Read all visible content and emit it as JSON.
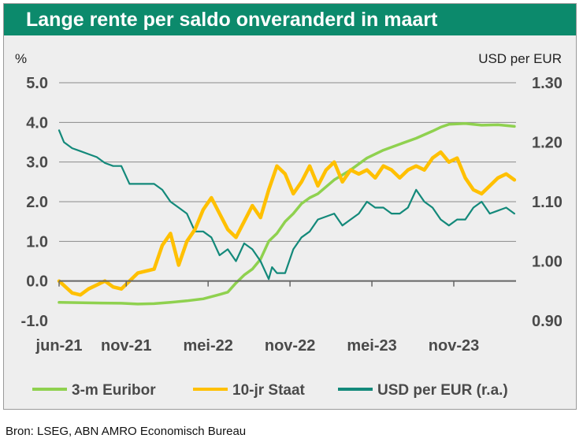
{
  "title": "Lange rente per saldo onveranderd in maart",
  "source": "Bron: LSEG, ABN AMRO Economisch Bureau",
  "colors": {
    "title_bg": "#0c8a6c",
    "euribor": "#8fd14f",
    "staat": "#ffc000",
    "usd": "#13897a",
    "zero_line": "#666666",
    "grid": "#8a8a8a"
  },
  "chart_data": {
    "type": "line",
    "title": "Lange rente per saldo onveranderd in maart",
    "ylabel_left": "%",
    "ylabel_right": "USD per EUR",
    "x_start": 2021.42,
    "x_end": 2024.21,
    "left_axis": {
      "min": -1.0,
      "max": 5.0,
      "ticks": [
        "-1.0",
        "0.0",
        "1.0",
        "2.0",
        "3.0",
        "4.0",
        "5.0"
      ]
    },
    "right_axis": {
      "min": 0.9,
      "max": 1.3,
      "ticks": [
        "0.90",
        "1.00",
        "1.10",
        "1.20",
        "1.30"
      ]
    },
    "x_ticks": [
      {
        "label": "jun-21",
        "x": 2021.42
      },
      {
        "label": "nov-21",
        "x": 2021.83
      },
      {
        "label": "mei-22",
        "x": 2022.33
      },
      {
        "label": "nov-22",
        "x": 2022.83
      },
      {
        "label": "mei-23",
        "x": 2023.33
      },
      {
        "label": "nov-23",
        "x": 2023.83
      }
    ],
    "grid": true,
    "legend_position": "bottom",
    "series": [
      {
        "name": "3-m Euribor",
        "axis": "left",
        "x": [
          2021.42,
          2021.6,
          2021.8,
          2021.9,
          2022.0,
          2022.1,
          2022.2,
          2022.3,
          2022.4,
          2022.45,
          2022.5,
          2022.55,
          2022.6,
          2022.65,
          2022.7,
          2022.75,
          2022.8,
          2022.85,
          2022.9,
          2022.95,
          2023.0,
          2023.1,
          2023.2,
          2023.3,
          2023.4,
          2023.5,
          2023.6,
          2023.7,
          2023.75,
          2023.8,
          2023.9,
          2024.0,
          2024.1,
          2024.2
        ],
        "y": [
          -0.54,
          -0.55,
          -0.56,
          -0.58,
          -0.57,
          -0.54,
          -0.5,
          -0.45,
          -0.34,
          -0.28,
          -0.05,
          0.15,
          0.3,
          0.55,
          1.0,
          1.2,
          1.5,
          1.7,
          1.95,
          2.1,
          2.2,
          2.55,
          2.8,
          3.1,
          3.3,
          3.45,
          3.6,
          3.78,
          3.88,
          3.95,
          3.97,
          3.93,
          3.94,
          3.9
        ]
      },
      {
        "name": "10-jr Staat",
        "axis": "left",
        "x": [
          2021.42,
          2021.5,
          2021.55,
          2021.6,
          2021.7,
          2021.75,
          2021.8,
          2021.85,
          2021.9,
          2022.0,
          2022.05,
          2022.1,
          2022.15,
          2022.2,
          2022.25,
          2022.3,
          2022.35,
          2022.4,
          2022.45,
          2022.5,
          2022.55,
          2022.6,
          2022.65,
          2022.7,
          2022.75,
          2022.8,
          2022.85,
          2022.9,
          2022.95,
          2023.0,
          2023.05,
          2023.1,
          2023.15,
          2023.2,
          2023.25,
          2023.3,
          2023.35,
          2023.4,
          2023.45,
          2023.5,
          2023.55,
          2023.6,
          2023.65,
          2023.7,
          2023.75,
          2023.8,
          2023.85,
          2023.9,
          2023.95,
          2024.0,
          2024.05,
          2024.1,
          2024.15,
          2024.2
        ],
        "y": [
          0.0,
          -0.3,
          -0.35,
          -0.2,
          0.0,
          -0.15,
          -0.2,
          0.0,
          0.2,
          0.3,
          0.9,
          1.2,
          0.4,
          1.0,
          1.3,
          1.8,
          2.1,
          1.7,
          1.3,
          1.1,
          1.5,
          1.9,
          1.6,
          2.3,
          2.9,
          2.7,
          2.2,
          2.5,
          2.9,
          2.4,
          2.8,
          3.0,
          2.5,
          2.8,
          2.7,
          2.8,
          2.6,
          2.9,
          2.8,
          2.6,
          2.8,
          2.9,
          2.8,
          3.1,
          3.25,
          3.0,
          3.1,
          2.6,
          2.3,
          2.2,
          2.4,
          2.6,
          2.7,
          2.55
        ]
      },
      {
        "name": "USD per EUR (r.a.)",
        "axis": "right",
        "x": [
          2021.42,
          2021.45,
          2021.5,
          2021.55,
          2021.6,
          2021.65,
          2021.7,
          2021.75,
          2021.8,
          2021.85,
          2021.9,
          2021.95,
          2022.0,
          2022.05,
          2022.1,
          2022.15,
          2022.2,
          2022.25,
          2022.3,
          2022.35,
          2022.4,
          2022.45,
          2022.5,
          2022.55,
          2022.6,
          2022.65,
          2022.7,
          2022.72,
          2022.75,
          2022.8,
          2022.85,
          2022.9,
          2022.95,
          2023.0,
          2023.05,
          2023.1,
          2023.15,
          2023.2,
          2023.25,
          2023.3,
          2023.35,
          2023.4,
          2023.45,
          2023.5,
          2023.55,
          2023.6,
          2023.65,
          2023.7,
          2023.75,
          2023.8,
          2023.85,
          2023.9,
          2023.95,
          2024.0,
          2024.05,
          2024.1,
          2024.15,
          2024.2
        ],
        "y": [
          1.22,
          1.2,
          1.19,
          1.185,
          1.18,
          1.175,
          1.165,
          1.16,
          1.16,
          1.13,
          1.13,
          1.13,
          1.13,
          1.12,
          1.1,
          1.09,
          1.08,
          1.05,
          1.05,
          1.04,
          1.01,
          1.02,
          1.0,
          1.03,
          1.02,
          1.0,
          0.97,
          0.99,
          0.98,
          0.98,
          1.02,
          1.04,
          1.05,
          1.07,
          1.075,
          1.08,
          1.06,
          1.07,
          1.08,
          1.1,
          1.09,
          1.09,
          1.08,
          1.08,
          1.09,
          1.12,
          1.1,
          1.09,
          1.07,
          1.06,
          1.07,
          1.07,
          1.09,
          1.1,
          1.08,
          1.085,
          1.09,
          1.08
        ]
      }
    ]
  }
}
